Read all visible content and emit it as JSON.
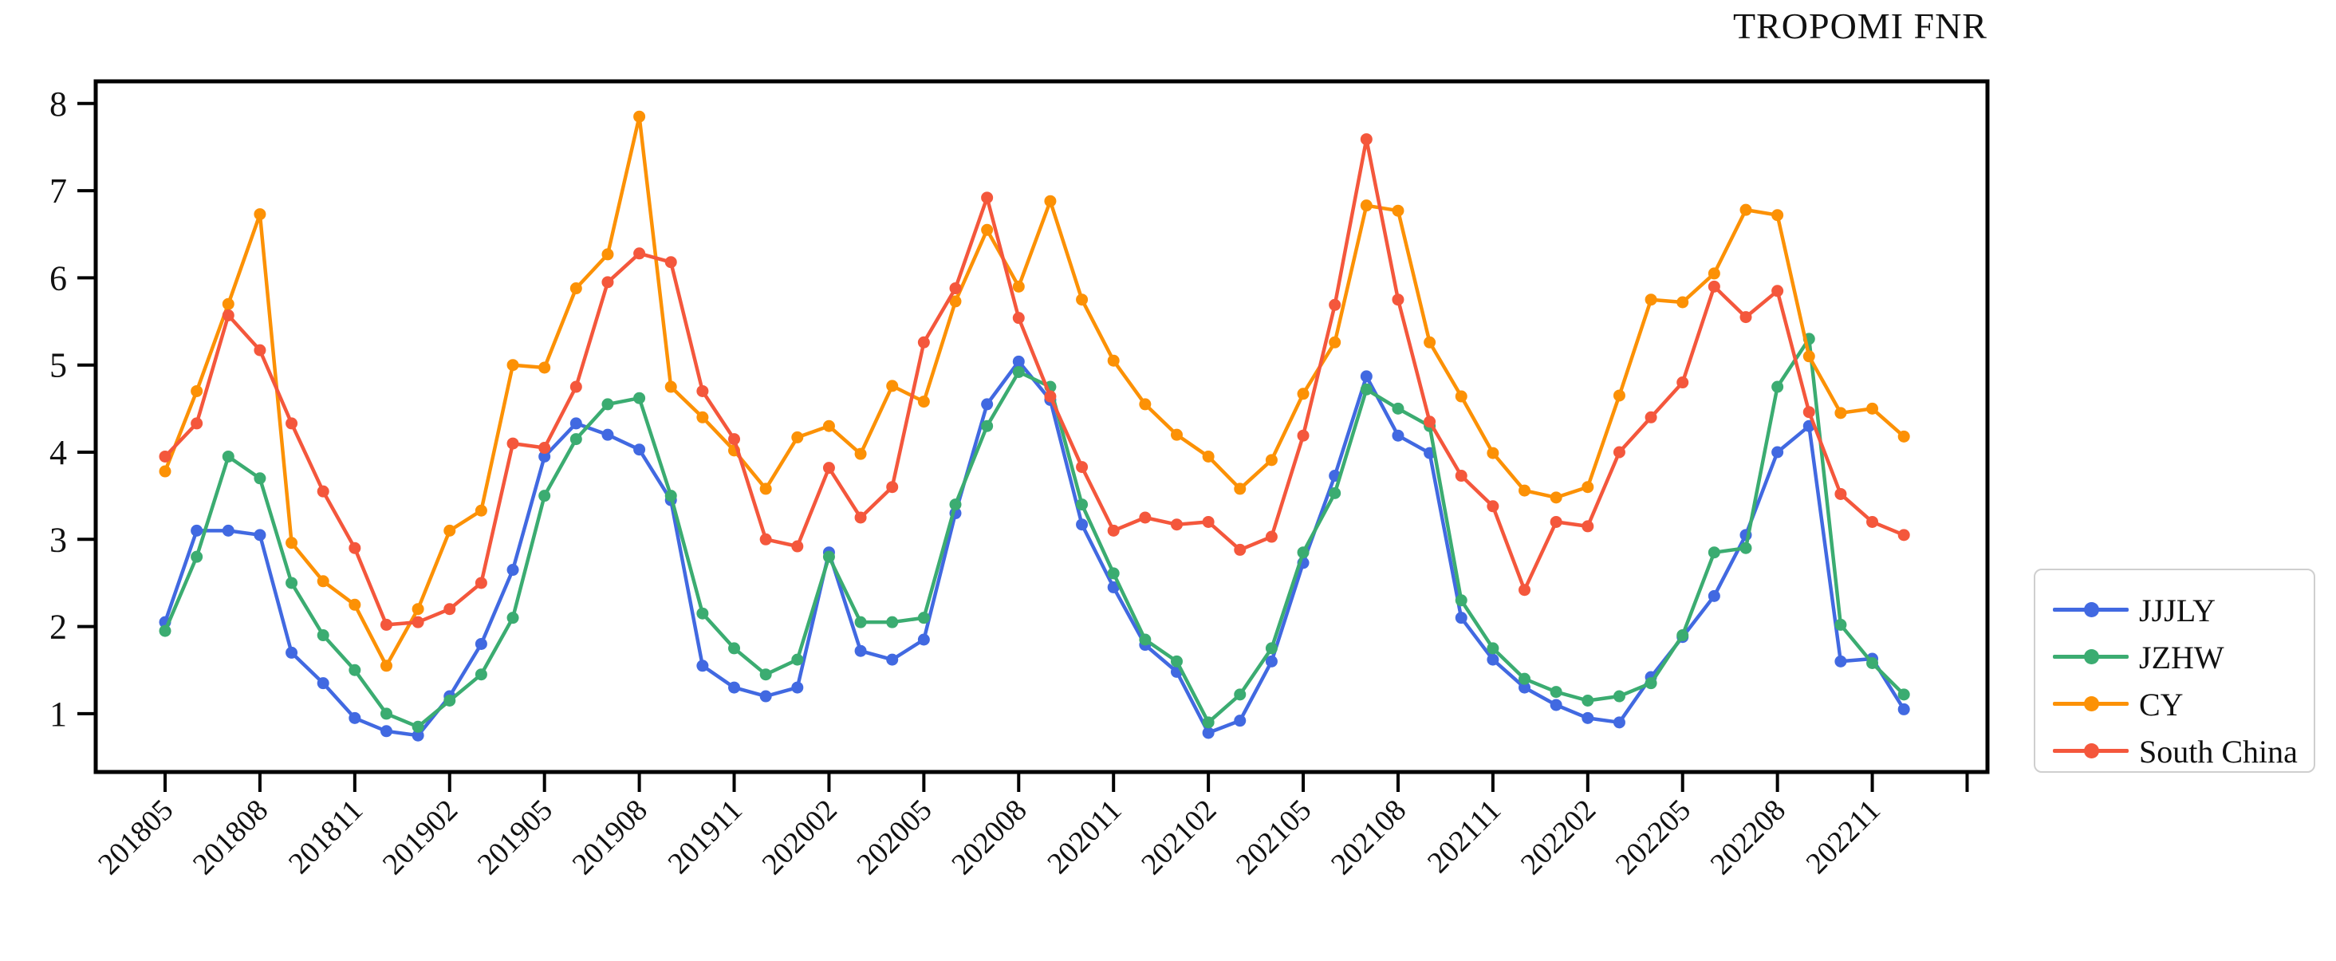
{
  "title": "TROPOMI FNR",
  "chart_data": {
    "type": "line",
    "title": "TROPOMI FNR",
    "grid": false,
    "legend_position": "outside-right",
    "ylim": [
      0.33,
      8.25
    ],
    "y_ticks": [
      "1",
      "2",
      "3",
      "4",
      "5",
      "6",
      "7",
      "8"
    ],
    "x": [
      "201805",
      "201806",
      "201807",
      "201808",
      "201809",
      "201810",
      "201811",
      "201812",
      "201901",
      "201902",
      "201903",
      "201904",
      "201905",
      "201906",
      "201907",
      "201908",
      "201909",
      "201910",
      "201911",
      "201912",
      "202001",
      "202002",
      "202003",
      "202004",
      "202005",
      "202006",
      "202007",
      "202008",
      "202009",
      "202010",
      "202011",
      "202012",
      "202101",
      "202102",
      "202103",
      "202104",
      "202105",
      "202106",
      "202107",
      "202108",
      "202109",
      "202110",
      "202111",
      "202112",
      "202201",
      "202202",
      "202203",
      "202204",
      "202205",
      "202206",
      "202207",
      "202208",
      "202209",
      "202210",
      "202211",
      "202212"
    ],
    "x_ticks": [
      {
        "i": 0,
        "label": "201805"
      },
      {
        "i": 3,
        "label": "201808"
      },
      {
        "i": 6,
        "label": "201811"
      },
      {
        "i": 9,
        "label": "201902"
      },
      {
        "i": 12,
        "label": "201905"
      },
      {
        "i": 15,
        "label": "201908"
      },
      {
        "i": 18,
        "label": "201911"
      },
      {
        "i": 21,
        "label": "202002"
      },
      {
        "i": 24,
        "label": "202005"
      },
      {
        "i": 27,
        "label": "202008"
      },
      {
        "i": 30,
        "label": "202011"
      },
      {
        "i": 33,
        "label": "202102"
      },
      {
        "i": 36,
        "label": "202105"
      },
      {
        "i": 39,
        "label": "202108"
      },
      {
        "i": 42,
        "label": "202111"
      },
      {
        "i": 45,
        "label": "202202"
      },
      {
        "i": 48,
        "label": "202205"
      },
      {
        "i": 51,
        "label": "202208"
      },
      {
        "i": 54,
        "label": "202211"
      },
      {
        "i": 57,
        "label": ""
      }
    ],
    "series": [
      {
        "name": "JJJLY",
        "color": "#4169e1",
        "values": [
          2.05,
          3.1,
          3.1,
          3.05,
          1.7,
          1.35,
          0.95,
          0.8,
          0.75,
          1.2,
          1.8,
          2.65,
          3.95,
          4.33,
          4.2,
          4.03,
          3.45,
          1.55,
          1.3,
          1.2,
          1.3,
          2.85,
          1.72,
          1.62,
          1.85,
          3.3,
          4.55,
          5.04,
          4.6,
          3.17,
          2.45,
          1.79,
          1.48,
          0.78,
          0.92,
          1.6,
          2.73,
          3.73,
          4.87,
          4.19,
          3.99,
          2.1,
          1.62,
          1.3,
          1.1,
          0.95,
          0.9,
          1.42,
          1.88,
          2.35,
          3.05,
          4.0,
          4.3,
          1.6,
          1.63,
          1.05
        ]
      },
      {
        "name": "JZHW",
        "color": "#3bac71",
        "values": [
          1.95,
          2.8,
          3.95,
          3.7,
          2.5,
          1.9,
          1.5,
          1.0,
          0.85,
          1.15,
          1.45,
          2.1,
          3.5,
          4.15,
          4.55,
          4.62,
          3.5,
          2.15,
          1.75,
          1.45,
          1.62,
          2.8,
          2.05,
          2.05,
          2.1,
          3.4,
          4.3,
          4.92,
          4.75,
          3.4,
          2.61,
          1.85,
          1.6,
          0.9,
          1.22,
          1.75,
          2.85,
          3.53,
          4.72,
          4.5,
          4.3,
          2.3,
          1.75,
          1.4,
          1.25,
          1.15,
          1.2,
          1.35,
          1.9,
          2.85,
          2.9,
          4.75,
          5.3,
          2.02,
          1.58,
          1.22
        ]
      },
      {
        "name": "CY",
        "color": "#fc9105",
        "values": [
          3.78,
          4.7,
          5.7,
          6.73,
          2.96,
          2.52,
          2.25,
          1.55,
          2.2,
          3.1,
          3.33,
          5.0,
          4.97,
          5.88,
          6.27,
          7.85,
          4.75,
          4.4,
          4.02,
          3.58,
          4.17,
          4.3,
          3.98,
          4.76,
          4.58,
          5.73,
          6.55,
          5.9,
          6.88,
          5.75,
          5.05,
          4.55,
          4.2,
          3.95,
          3.58,
          3.91,
          4.67,
          5.26,
          6.83,
          6.77,
          5.26,
          4.64,
          3.99,
          3.56,
          3.48,
          3.6,
          4.65,
          5.75,
          5.72,
          6.05,
          6.78,
          6.72,
          5.1,
          4.45,
          4.5,
          4.18
        ]
      },
      {
        "name": "South China",
        "color": "#f4573c",
        "values": [
          3.95,
          4.33,
          5.57,
          5.17,
          4.33,
          3.55,
          2.9,
          2.02,
          2.05,
          2.2,
          2.5,
          4.1,
          4.05,
          4.75,
          5.95,
          6.28,
          6.18,
          4.7,
          4.15,
          3.0,
          2.92,
          3.82,
          3.25,
          3.6,
          5.26,
          5.88,
          6.92,
          5.54,
          4.64,
          3.83,
          3.1,
          3.25,
          3.17,
          3.2,
          2.88,
          3.03,
          4.19,
          5.69,
          7.59,
          5.75,
          4.35,
          3.73,
          3.38,
          2.42,
          3.2,
          3.15,
          4.0,
          4.4,
          4.8,
          5.9,
          5.55,
          5.85,
          4.46,
          3.52,
          3.2,
          3.05
        ]
      }
    ]
  }
}
